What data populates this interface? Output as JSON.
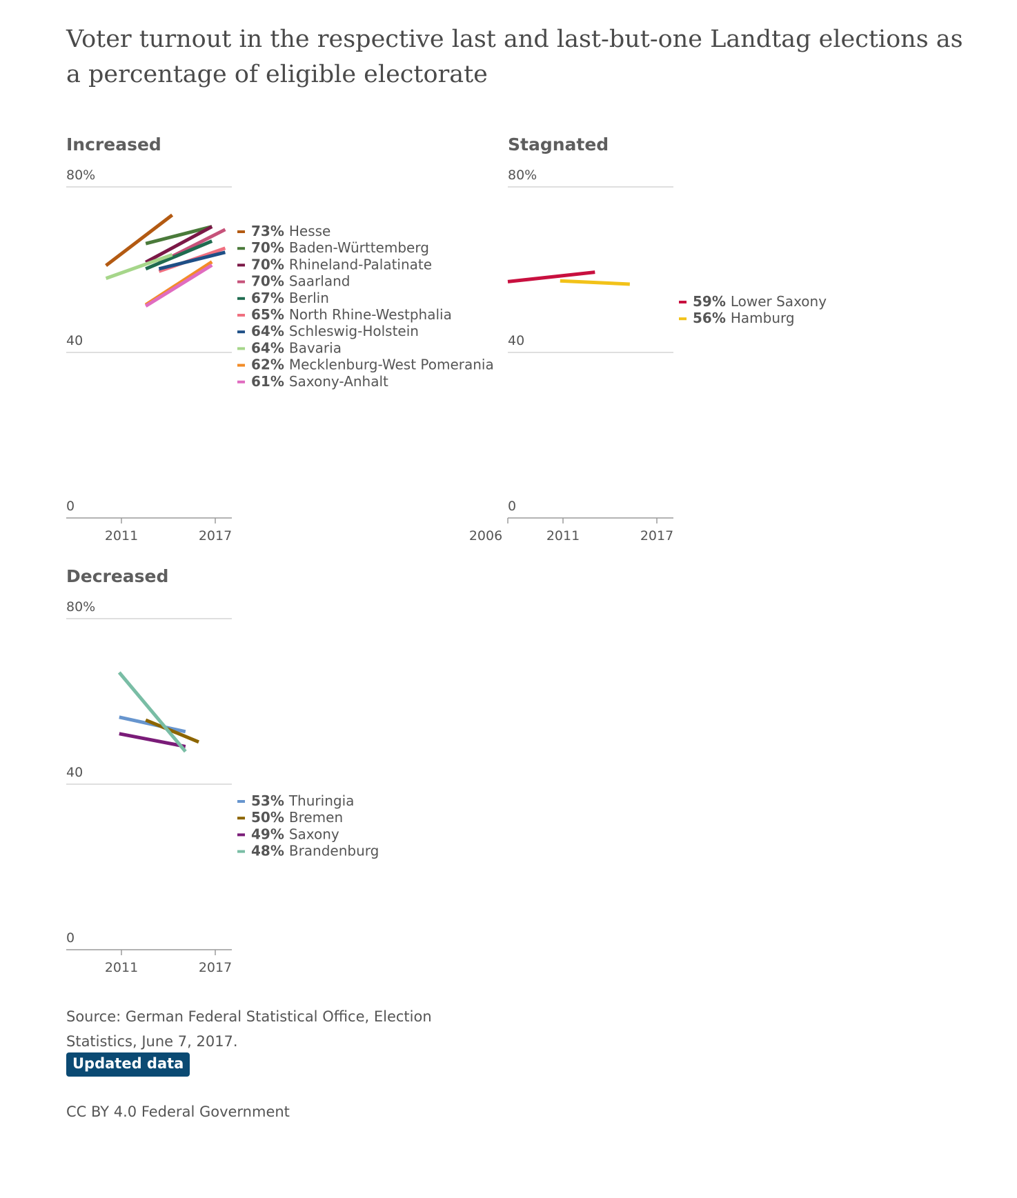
{
  "title": "Voter turnout in the respective last and last-but-one Landtag elections as a percentage of eligible electorate",
  "chart_data": [
    {
      "type": "line",
      "title": "Increased",
      "y_ticks": [
        "80%",
        "40",
        "0"
      ],
      "ylim": [
        0,
        80
      ],
      "x_ticks": [
        "2011",
        "2017"
      ],
      "xlim": [
        2005,
        2017.5
      ],
      "series": [
        {
          "name": "Hesse",
          "label_value": "73%",
          "color": "#b35a12",
          "x": [
            2008,
            2013
          ],
          "y": [
            61.0,
            73.2
          ]
        },
        {
          "name": "Baden-Württemberg",
          "label_value": "70%",
          "color": "#4a7a3a",
          "x": [
            2011,
            2016
          ],
          "y": [
            66.3,
            70.4
          ]
        },
        {
          "name": "Rhineland-Palatinate",
          "label_value": "70%",
          "color": "#7b1847",
          "x": [
            2011,
            2016
          ],
          "y": [
            61.8,
            70.4
          ]
        },
        {
          "name": "Saarland",
          "label_value": "70%",
          "color": "#c6527a",
          "x": [
            2012,
            2017
          ],
          "y": [
            61.6,
            69.7
          ]
        },
        {
          "name": "Berlin",
          "label_value": "67%",
          "color": "#1f6b4f",
          "x": [
            2011,
            2016
          ],
          "y": [
            60.2,
            66.9
          ]
        },
        {
          "name": "North Rhine-Westphalia",
          "label_value": "65%",
          "color": "#f07080",
          "x": [
            2012,
            2017
          ],
          "y": [
            59.6,
            65.2
          ]
        },
        {
          "name": "Schleswig-Holstein",
          "label_value": "64%",
          "color": "#1e4f86",
          "x": [
            2012,
            2017
          ],
          "y": [
            60.2,
            64.2
          ]
        },
        {
          "name": "Bavaria",
          "label_value": "64%",
          "color": "#a6d68a",
          "x": [
            2008,
            2013
          ],
          "y": [
            57.9,
            63.6
          ]
        },
        {
          "name": "Mecklenburg-West Pomerania",
          "label_value": "62%",
          "color": "#f28c28",
          "x": [
            2011,
            2016
          ],
          "y": [
            51.5,
            61.9
          ]
        },
        {
          "name": "Saxony-Anhalt",
          "label_value": "61%",
          "color": "#e06cc0",
          "x": [
            2011,
            2016
          ],
          "y": [
            51.2,
            61.1
          ]
        }
      ]
    },
    {
      "type": "line",
      "title": "Stagnated",
      "y_ticks": [
        "80%",
        "40",
        "0"
      ],
      "ylim": [
        0,
        80
      ],
      "x_ticks": [
        "2006",
        "2011",
        "2017"
      ],
      "xlim": [
        2008,
        2017.5
      ],
      "series": [
        {
          "name": "Lower Saxony",
          "label_value": "59%",
          "color": "#c8103f",
          "x": [
            2008,
            2013
          ],
          "y": [
            57.1,
            59.4
          ]
        },
        {
          "name": "Hamburg",
          "label_value": "56%",
          "color": "#f2c219",
          "x": [
            2011,
            2015
          ],
          "y": [
            57.3,
            56.5
          ]
        }
      ]
    },
    {
      "type": "line",
      "title": "Decreased",
      "y_ticks": [
        "80%",
        "40",
        "0"
      ],
      "ylim": [
        0,
        80
      ],
      "x_ticks": [
        "2011",
        "2017"
      ],
      "xlim": [
        2005,
        2017.5
      ],
      "series": [
        {
          "name": "Thuringia",
          "label_value": "53%",
          "color": "#6795ce",
          "x": [
            2009,
            2014
          ],
          "y": [
            56.2,
            52.7
          ]
        },
        {
          "name": "Bremen",
          "label_value": "50%",
          "color": "#8c6500",
          "x": [
            2011,
            2015
          ],
          "y": [
            55.5,
            50.2
          ]
        },
        {
          "name": "Saxony",
          "label_value": "49%",
          "color": "#7a1c78",
          "x": [
            2009,
            2014
          ],
          "y": [
            52.2,
            49.1
          ]
        },
        {
          "name": "Brandenburg",
          "label_value": "48%",
          "color": "#79bda5",
          "x": [
            2009,
            2014
          ],
          "y": [
            67.0,
            47.9
          ]
        }
      ]
    }
  ],
  "footer": {
    "source": "Source: German Federal Statistical Office, Election Statistics, June 7, 2017.",
    "button": "Updated data",
    "license": "CC BY 4.0 Federal Government"
  }
}
